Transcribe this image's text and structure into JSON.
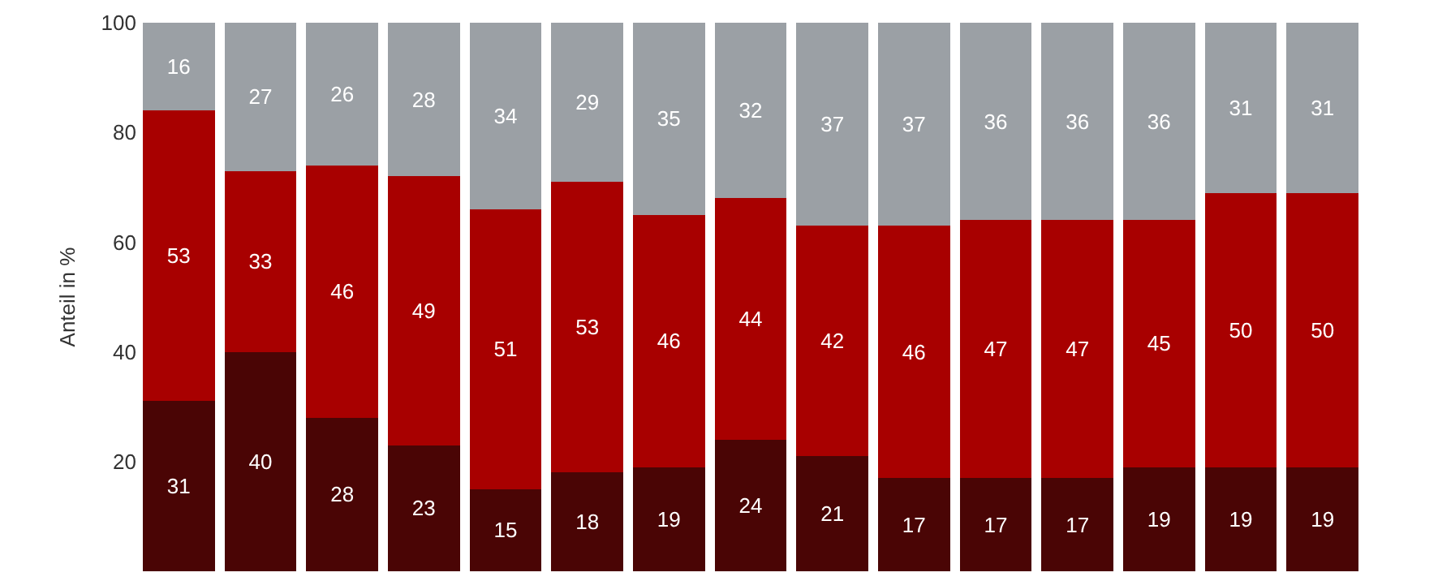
{
  "chart_data": {
    "type": "bar",
    "stacked": true,
    "ylabel": "Anteil in %",
    "categories": [
      null,
      null,
      null,
      null,
      null,
      null,
      null,
      null,
      null,
      null,
      null,
      null,
      null,
      null,
      null
    ],
    "series": [
      {
        "color": "#4a0505",
        "values": [
          31,
          40,
          28,
          23,
          15,
          18,
          19,
          24,
          21,
          17,
          17,
          17,
          19,
          19,
          19
        ]
      },
      {
        "color": "#a80000",
        "values": [
          53,
          33,
          46,
          49,
          51,
          53,
          46,
          44,
          42,
          46,
          47,
          47,
          45,
          50,
          50
        ]
      },
      {
        "color": "#9ba0a5",
        "values": [
          16,
          27,
          26,
          28,
          34,
          29,
          35,
          32,
          37,
          37,
          36,
          36,
          36,
          31,
          31
        ]
      }
    ],
    "ylim": [
      0,
      100
    ],
    "yticks": [
      20,
      40,
      60,
      80,
      100
    ],
    "data_labels": true
  }
}
